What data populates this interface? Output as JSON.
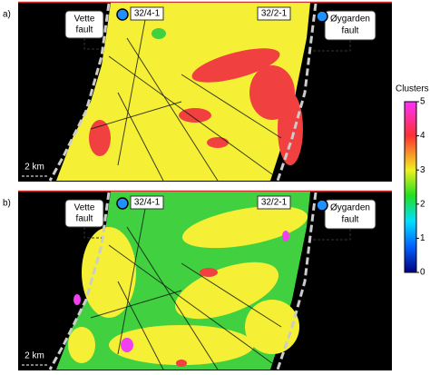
{
  "panels": [
    {
      "label": "a)",
      "left_fault": [
        "Vette",
        "fault"
      ],
      "right_fault": [
        "Øygarden",
        "fault"
      ],
      "wells": [
        "32/4-1",
        "32/2-1"
      ],
      "scale": "2 km"
    },
    {
      "label": "b)",
      "left_fault": [
        "Vette",
        "fault"
      ],
      "right_fault": [
        "Øygarden",
        "fault"
      ],
      "wells": [
        "32/4-1",
        "32/2-1"
      ],
      "scale": "2 km"
    }
  ],
  "colorbar": {
    "label": "Clusters",
    "ticks": [
      0,
      1,
      2,
      3,
      4,
      5
    ]
  }
}
